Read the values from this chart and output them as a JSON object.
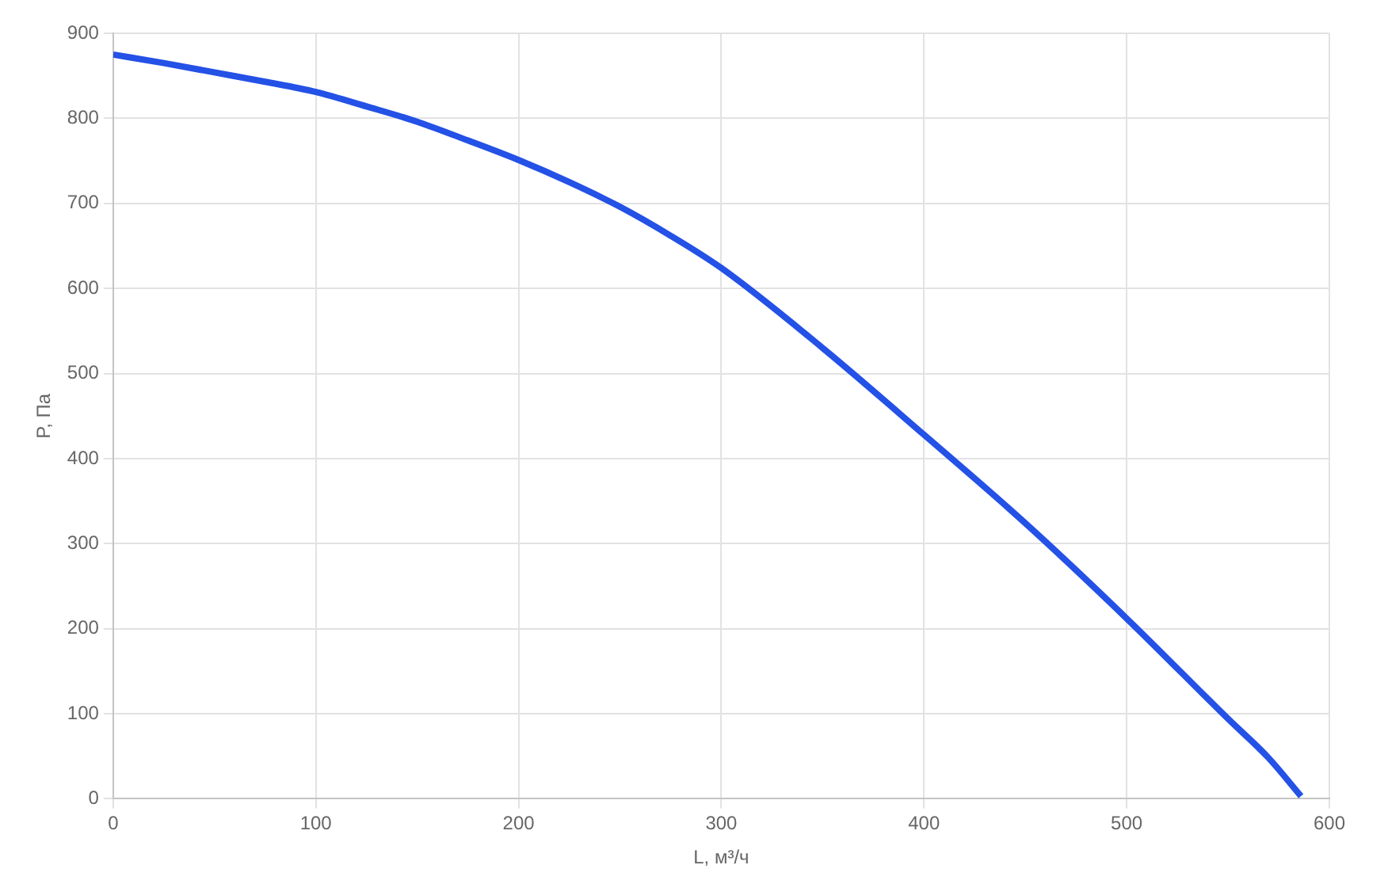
{
  "chart_data": {
    "type": "line",
    "xlabel": "L, м³/ч",
    "ylabel": "P, Па",
    "x": [
      0,
      25,
      50,
      75,
      100,
      125,
      150,
      175,
      200,
      225,
      250,
      275,
      300,
      350,
      400,
      450,
      500,
      550,
      570,
      586
    ],
    "values": [
      875,
      865,
      854,
      843,
      831,
      814,
      796,
      774,
      751,
      725,
      696,
      662,
      624,
      530,
      428,
      324,
      212,
      94,
      48,
      3
    ],
    "color": "#2451e6",
    "xlim": [
      0,
      600
    ],
    "xticks": [
      0,
      100,
      200,
      300,
      400,
      500,
      600
    ],
    "ylim": [
      0,
      900
    ],
    "yticks": [
      0,
      100,
      200,
      300,
      400,
      500,
      600,
      700,
      800,
      900
    ],
    "grid": true,
    "line_style": "solid"
  }
}
